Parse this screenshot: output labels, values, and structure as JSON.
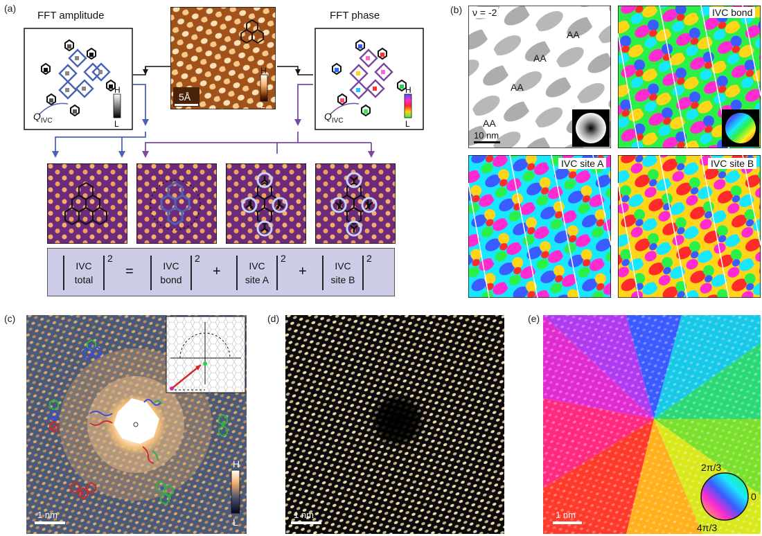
{
  "panel_a": {
    "label": "(a)",
    "fft_amplitude_title": "FFT amplitude",
    "fft_phase_title": "FFT phase",
    "q_ivc_label": "Q",
    "q_ivc_sub": "IVC",
    "scale_label": "5Å",
    "colorbar_high": "H",
    "colorbar_low": "L",
    "equation": {
      "terms": [
        {
          "line1": "IVC",
          "line2": "total"
        },
        {
          "line1": "IVC",
          "line2": "bond"
        },
        {
          "line1": "IVC",
          "line2": "site A"
        },
        {
          "line1": "IVC",
          "line2": "site B"
        }
      ],
      "exponent": "2",
      "equals": "=",
      "plus": "+"
    }
  },
  "panel_b": {
    "label": "(b)",
    "filling": "ν = -2",
    "aa_labels": [
      "AA",
      "AA",
      "AA",
      "AA"
    ],
    "scale_label": "10 nm",
    "tile_titles": [
      "IVC bond",
      "IVC site A",
      "IVC site B"
    ]
  },
  "panel_c": {
    "label": "(c)",
    "scale_label": "1 nm",
    "colorbar_high": "H",
    "colorbar_low": "L"
  },
  "panel_d": {
    "label": "(d)",
    "scale_label": "1 nm"
  },
  "panel_e": {
    "label": "(e)",
    "scale_label": "1 nm",
    "phase_labels": [
      "2π/3",
      "0",
      "4π/3"
    ]
  },
  "colors": {
    "blue_arrow": "#4a63b5",
    "purple_arrow": "#7a4a9e",
    "eq_box": "#cdcce6"
  }
}
